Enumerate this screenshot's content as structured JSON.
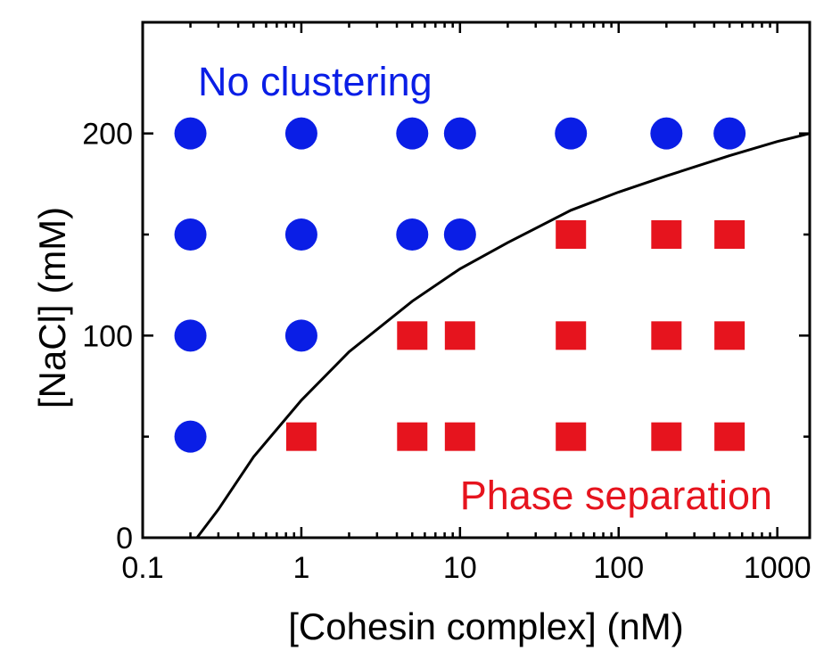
{
  "chart_data": {
    "type": "scatter",
    "xlabel": "[Cohesin complex] (nM)",
    "ylabel": "[NaCl] (mM)",
    "xscale": "log",
    "xlim": [
      0.1,
      1600
    ],
    "ylim": [
      0,
      255
    ],
    "x_ticks": [
      0.1,
      1,
      10,
      100,
      1000
    ],
    "x_tick_labels": [
      "0.1",
      "1",
      "10",
      "100",
      "1000"
    ],
    "y_ticks": [
      0,
      100,
      200
    ],
    "y_tick_labels": [
      "0",
      "100",
      "200"
    ],
    "y_minor_ticks": [
      50,
      150
    ],
    "grid": false,
    "annotations": [
      {
        "text": "No clustering",
        "color": "#0a1ee6"
      },
      {
        "text": "Phase separation",
        "color": "#e6141e"
      }
    ],
    "series": [
      {
        "marker": "circle",
        "color": "#0a1ee6",
        "points": [
          {
            "x": 0.2,
            "y": 200
          },
          {
            "x": 1,
            "y": 200
          },
          {
            "x": 5,
            "y": 200
          },
          {
            "x": 10,
            "y": 200
          },
          {
            "x": 50,
            "y": 200
          },
          {
            "x": 200,
            "y": 200
          },
          {
            "x": 500,
            "y": 200
          },
          {
            "x": 0.2,
            "y": 150
          },
          {
            "x": 1,
            "y": 150
          },
          {
            "x": 5,
            "y": 150
          },
          {
            "x": 10,
            "y": 150
          },
          {
            "x": 0.2,
            "y": 100
          },
          {
            "x": 1,
            "y": 100
          },
          {
            "x": 0.2,
            "y": 50
          }
        ]
      },
      {
        "marker": "square",
        "color": "#e6141e",
        "points": [
          {
            "x": 50,
            "y": 150
          },
          {
            "x": 200,
            "y": 150
          },
          {
            "x": 500,
            "y": 150
          },
          {
            "x": 5,
            "y": 100
          },
          {
            "x": 10,
            "y": 100
          },
          {
            "x": 50,
            "y": 100
          },
          {
            "x": 200,
            "y": 100
          },
          {
            "x": 500,
            "y": 100
          },
          {
            "x": 1,
            "y": 50
          },
          {
            "x": 5,
            "y": 50
          },
          {
            "x": 10,
            "y": 50
          },
          {
            "x": 50,
            "y": 50
          },
          {
            "x": 200,
            "y": 50
          },
          {
            "x": 500,
            "y": 50
          }
        ]
      }
    ],
    "curve": {
      "color": "#000000",
      "points": [
        {
          "x": 0.22,
          "y": 0
        },
        {
          "x": 0.3,
          "y": 14
        },
        {
          "x": 0.5,
          "y": 40
        },
        {
          "x": 1,
          "y": 68
        },
        {
          "x": 2,
          "y": 92
        },
        {
          "x": 5,
          "y": 117
        },
        {
          "x": 10,
          "y": 133
        },
        {
          "x": 20,
          "y": 146
        },
        {
          "x": 50,
          "y": 162
        },
        {
          "x": 100,
          "y": 171
        },
        {
          "x": 200,
          "y": 179
        },
        {
          "x": 500,
          "y": 189
        },
        {
          "x": 1000,
          "y": 196
        },
        {
          "x": 1600,
          "y": 200
        }
      ]
    }
  }
}
